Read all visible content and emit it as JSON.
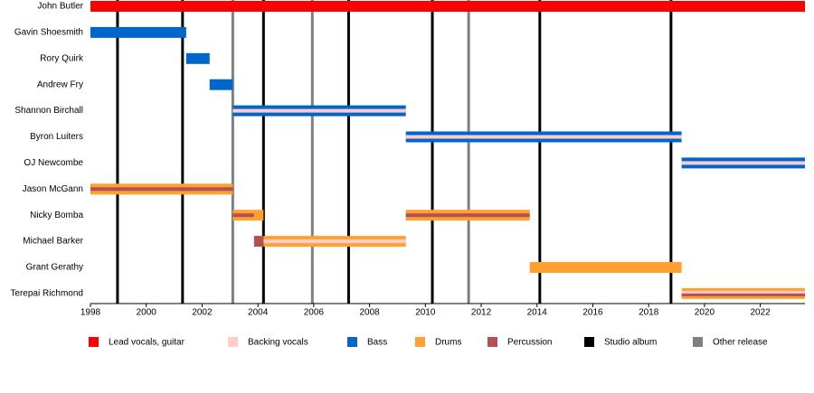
{
  "chart_data": {
    "type": "timeline",
    "categories": [
      "John Butler",
      "Gavin Shoesmith",
      "Rory Quirk",
      "Andrew Fry",
      "Shannon Birchall",
      "Byron Luiters",
      "OJ Newcombe",
      "Jason McGann",
      "Nicky Bomba",
      "Michael Barker",
      "Grant Gerathy",
      "Terepai Richmond"
    ],
    "roles": [
      {
        "name": "Lead vocals, guitar",
        "color": "#ff0000"
      },
      {
        "name": "Backing vocals",
        "color": "#ffcccc"
      },
      {
        "name": "Bass",
        "color": "#0066cc"
      },
      {
        "name": "Drums",
        "color": "#ffa030"
      },
      {
        "name": "Percussion",
        "color": "#b35050"
      },
      {
        "name": "Studio album",
        "color": "#000000"
      },
      {
        "name": "Other release",
        "color": "#808080"
      }
    ],
    "bars": [
      {
        "member": "John Butler",
        "role": "Lead vocals, guitar",
        "start": 1998,
        "end": 2023.6
      },
      {
        "member": "Gavin Shoesmith",
        "role": "Bass",
        "start": 1998,
        "end": 2001.43
      },
      {
        "member": "Rory Quirk",
        "role": "Bass",
        "start": 2001.43,
        "end": 2002.27
      },
      {
        "member": "Andrew Fry",
        "role": "Bass",
        "start": 2002.27,
        "end": 2003.1
      },
      {
        "member": "Shannon Birchall",
        "role": "Bass",
        "start": 2003.1,
        "end": 2009.3
      },
      {
        "member": "Byron Luiters",
        "role": "Bass",
        "start": 2009.3,
        "end": 2019.18
      },
      {
        "member": "OJ Newcombe",
        "role": "Bass",
        "start": 2019.18,
        "end": 2023.6
      },
      {
        "member": "Jason McGann",
        "role": "Drums",
        "start": 1998,
        "end": 2003.1
      },
      {
        "member": "Nicky Bomba",
        "role": "Drums",
        "start": 2003.1,
        "end": 2004.2
      },
      {
        "member": "Nicky Bomba",
        "role": "Drums",
        "start": 2009.3,
        "end": 2013.74
      },
      {
        "member": "Michael Barker",
        "role": "Percussion",
        "start": 2003.86,
        "end": 2004.2
      },
      {
        "member": "Michael Barker",
        "role": "Drums",
        "start": 2004.2,
        "end": 2009.3
      },
      {
        "member": "Grant Gerathy",
        "role": "Drums",
        "start": 2013.74,
        "end": 2019.18
      },
      {
        "member": "Terepai Richmond",
        "role": "Drums",
        "start": 2019.18,
        "end": 2023.6
      }
    ],
    "stripes": [
      {
        "member": "Shannon Birchall",
        "role": "Backing vocals",
        "start": 2003.1,
        "end": 2009.3
      },
      {
        "member": "Byron Luiters",
        "role": "Backing vocals",
        "start": 2009.3,
        "end": 2019.18
      },
      {
        "member": "OJ Newcombe",
        "role": "Backing vocals",
        "start": 2019.18,
        "end": 2023.6
      },
      {
        "member": "Jason McGann",
        "role": "Percussion",
        "start": 1998,
        "end": 2003.1
      },
      {
        "member": "Nicky Bomba",
        "role": "Percussion",
        "start": 2003.1,
        "end": 2003.86
      },
      {
        "member": "Nicky Bomba",
        "role": "Percussion",
        "start": 2009.3,
        "end": 2013.74
      },
      {
        "member": "Michael Barker",
        "role": "Backing vocals",
        "start": 2004.2,
        "end": 2009.3
      },
      {
        "member": "Terepai Richmond",
        "role": "Backing vocals",
        "start": 2019.18,
        "end": 2023.6
      },
      {
        "member": "Terepai Richmond",
        "role": "Percussion",
        "start": 2019.18,
        "end": 2023.6
      }
    ],
    "events": [
      {
        "kind": "Studio album",
        "year": 1998.97
      },
      {
        "kind": "Studio album",
        "year": 2001.3
      },
      {
        "kind": "Other release",
        "year": 2003.1
      },
      {
        "kind": "Studio album",
        "year": 2004.2
      },
      {
        "kind": "Other release",
        "year": 2005.95
      },
      {
        "kind": "Studio album",
        "year": 2007.25
      },
      {
        "kind": "Studio album",
        "year": 2010.25
      },
      {
        "kind": "Other release",
        "year": 2011.55
      },
      {
        "kind": "Studio album",
        "year": 2014.1
      },
      {
        "kind": "Studio album",
        "year": 2018.8
      }
    ],
    "xlim": [
      1998,
      2023.6
    ],
    "xticks": [
      1998,
      2000,
      2002,
      2004,
      2006,
      2008,
      2010,
      2012,
      2014,
      2016,
      2018,
      2020,
      2022
    ]
  }
}
